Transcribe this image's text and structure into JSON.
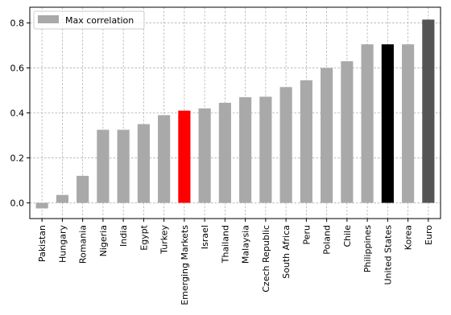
{
  "chart_data": {
    "type": "bar",
    "title": "",
    "xlabel": "",
    "ylabel": "",
    "ylim": [
      -0.07,
      0.87
    ],
    "yticks": [
      0.0,
      0.2,
      0.4,
      0.6,
      0.8
    ],
    "ytick_labels": [
      "0.0",
      "0.2",
      "0.4",
      "0.6",
      "0.8"
    ],
    "grid": true,
    "legend_position": "top-left",
    "categories": [
      "Pakistan",
      "Hungary",
      "Romania",
      "Nigeria",
      "India",
      "Egypt",
      "Turkey",
      "Emerging Markets",
      "Israel",
      "Thailand",
      "Malaysia",
      "Czech Republic",
      "South Africa",
      "Peru",
      "Poland",
      "Chile",
      "Philippines",
      "United States",
      "Korea",
      "Euro"
    ],
    "series": [
      {
        "name": "Max correlation",
        "color": "#a9a9a9",
        "values": [
          -0.025,
          0.035,
          0.12,
          0.325,
          0.325,
          0.35,
          0.39,
          0.41,
          0.42,
          0.445,
          0.47,
          0.472,
          0.515,
          0.545,
          0.6,
          0.63,
          0.705,
          0.705,
          0.705,
          0.815
        ],
        "bar_colors": [
          "#a9a9a9",
          "#a9a9a9",
          "#a9a9a9",
          "#a9a9a9",
          "#a9a9a9",
          "#a9a9a9",
          "#a9a9a9",
          "#ff0000",
          "#a9a9a9",
          "#a9a9a9",
          "#a9a9a9",
          "#a9a9a9",
          "#a9a9a9",
          "#a9a9a9",
          "#a9a9a9",
          "#a9a9a9",
          "#a9a9a9",
          "#000000",
          "#a9a9a9",
          "#555555"
        ]
      }
    ]
  }
}
